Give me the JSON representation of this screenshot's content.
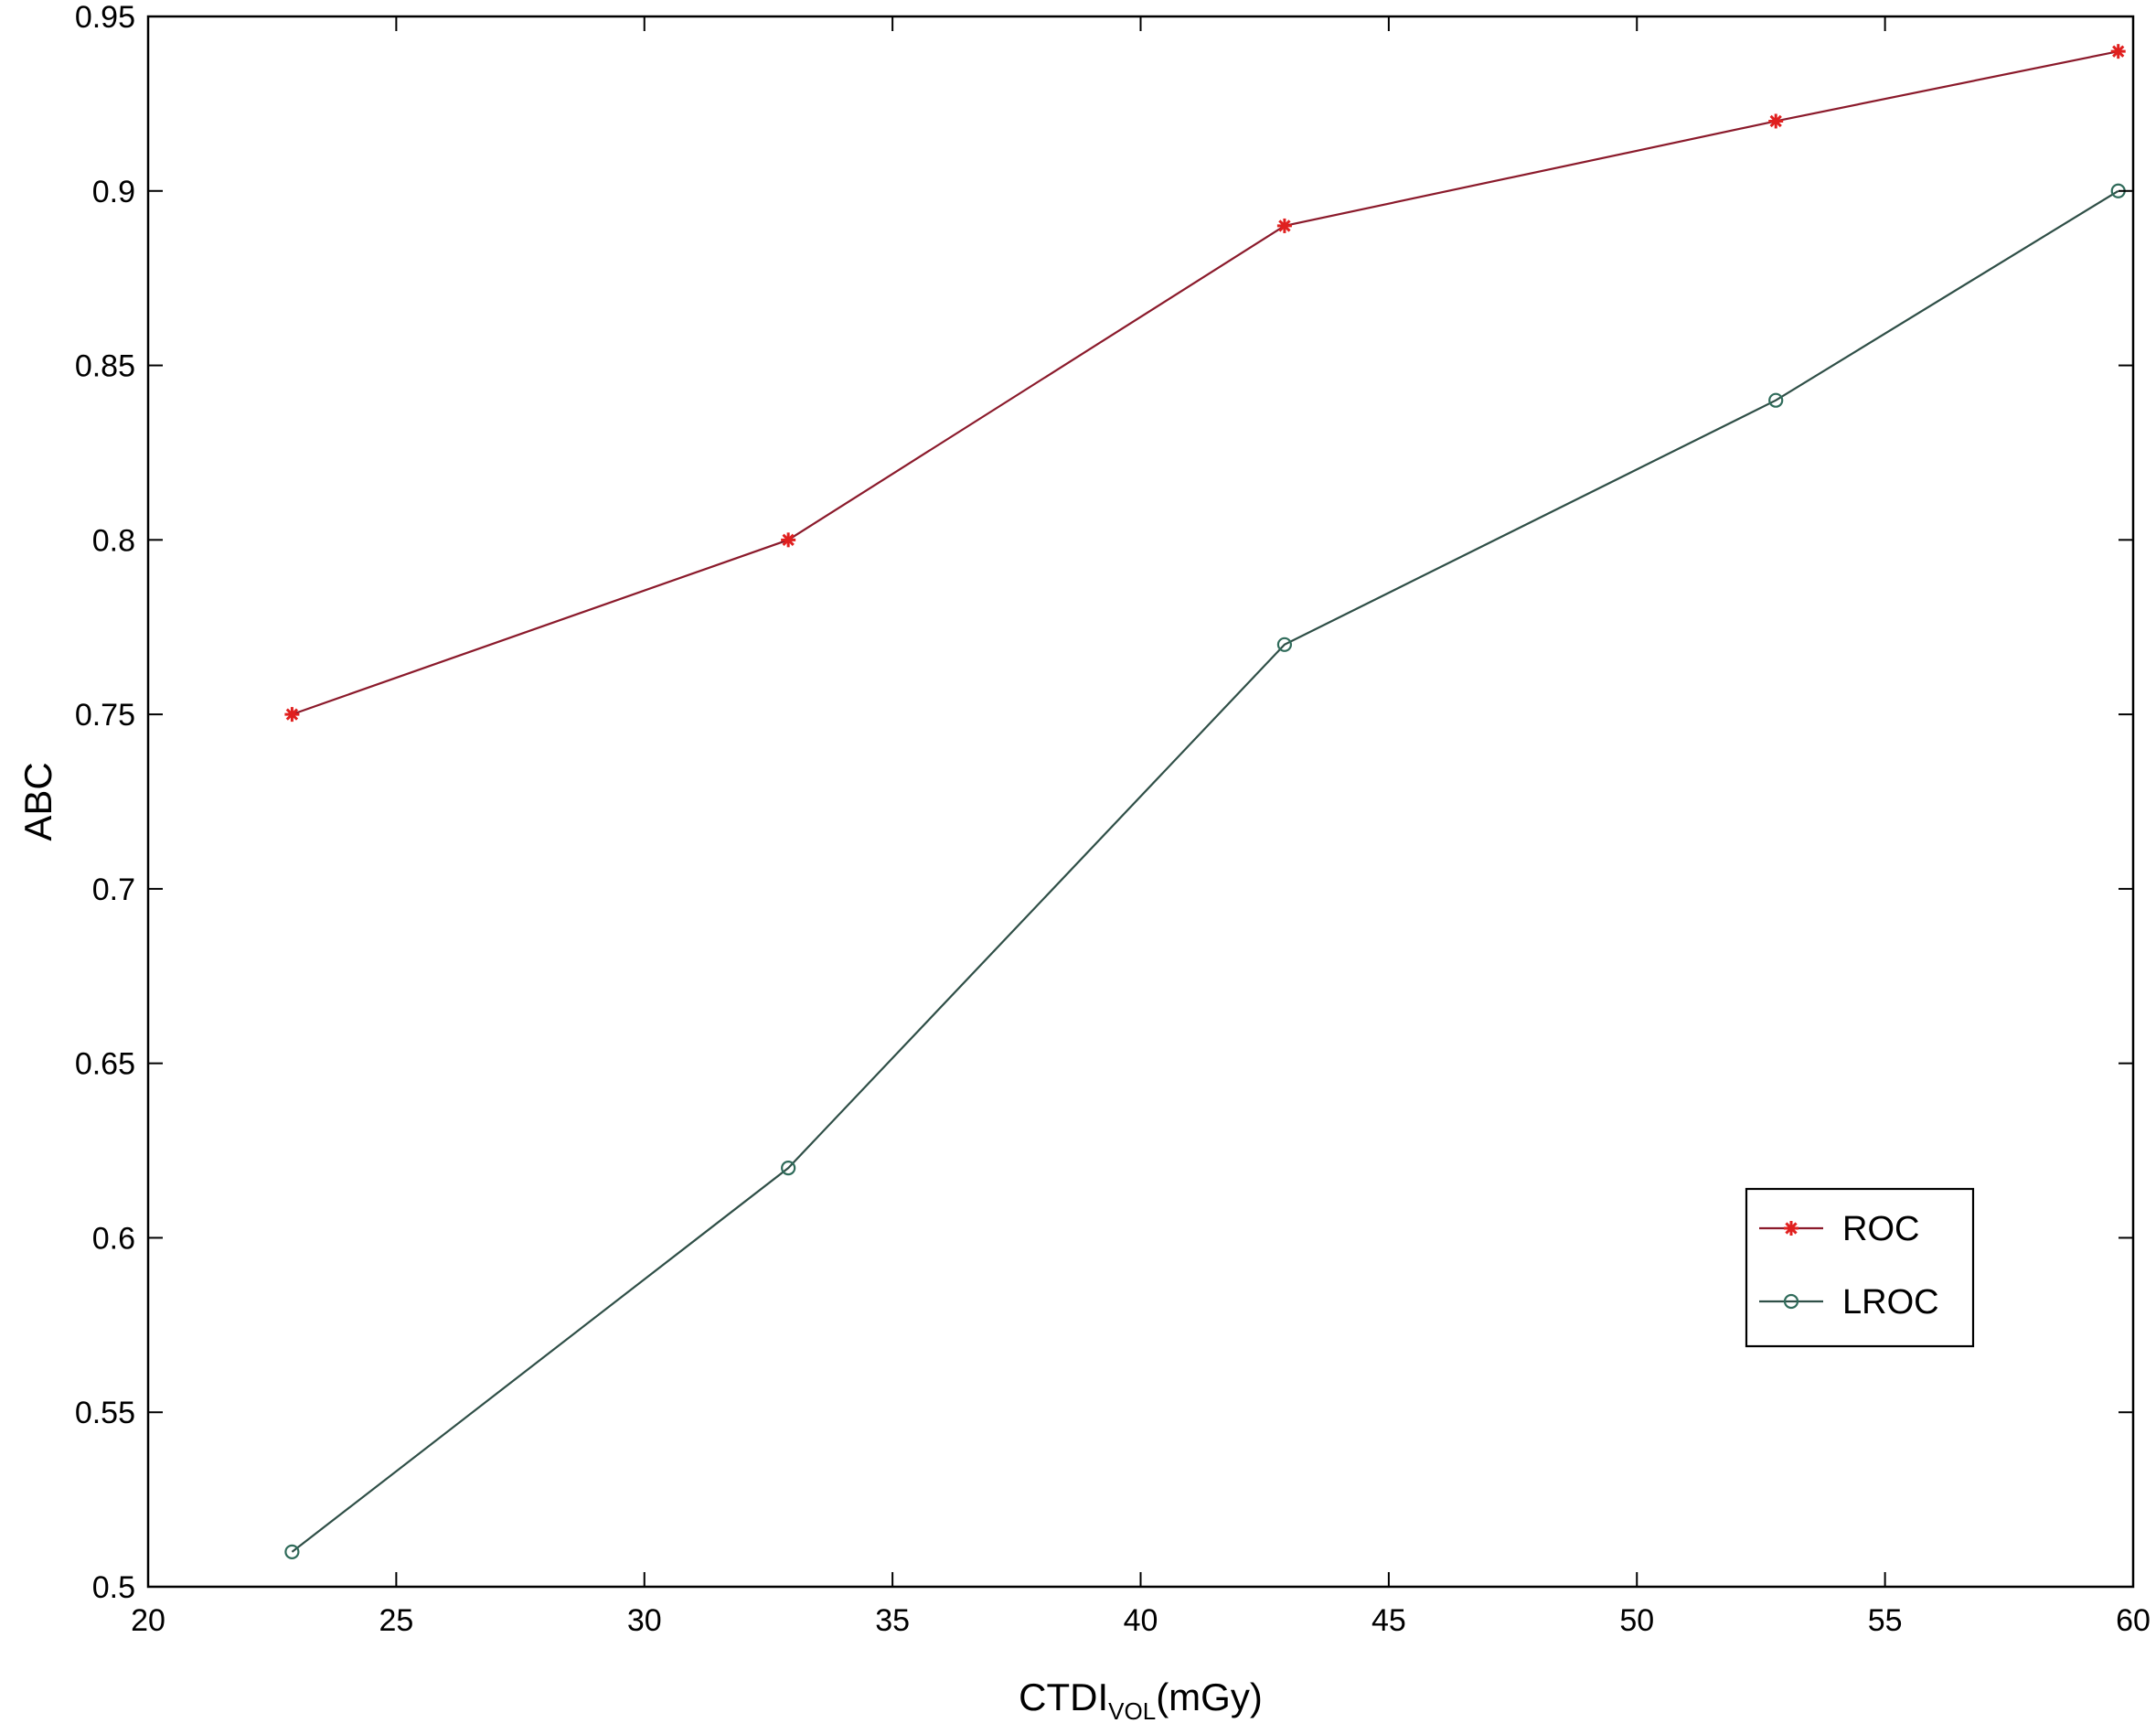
{
  "chart_data": {
    "type": "line",
    "xlabel": "CTDI",
    "xlabel_sub": "VOL",
    "xlabel_unit": "(mGy)",
    "ylabel": "ABC",
    "xlim": [
      20,
      60
    ],
    "ylim": [
      0.5,
      0.95
    ],
    "xticks": [
      20,
      25,
      30,
      35,
      40,
      45,
      50,
      55,
      60
    ],
    "yticks": [
      0.5,
      0.55,
      0.6,
      0.65,
      0.7,
      0.75,
      0.8,
      0.85,
      0.9,
      0.95
    ],
    "xtick_labels": [
      "20",
      "25",
      "30",
      "35",
      "40",
      "45",
      "50",
      "55",
      "60"
    ],
    "ytick_labels": [
      "0.5",
      "0.55",
      "0.6",
      "0.65",
      "0.7",
      "0.75",
      "0.8",
      "0.85",
      "0.9",
      "0.95"
    ],
    "grid": false,
    "legend_position": "bottom-right",
    "series": [
      {
        "name": "ROC",
        "marker": "asterisk",
        "color": "#8b1a2b",
        "marker_color": "#e0201f",
        "x": [
          22.9,
          32.9,
          42.9,
          52.8,
          59.7
        ],
        "y": [
          0.75,
          0.8,
          0.89,
          0.92,
          0.94
        ]
      },
      {
        "name": "LROC",
        "marker": "circle",
        "color": "#2f4f47",
        "marker_color": "#2f6b5a",
        "x": [
          22.9,
          32.9,
          42.9,
          52.8,
          59.7
        ],
        "y": [
          0.51,
          0.62,
          0.77,
          0.84,
          0.9
        ]
      }
    ]
  }
}
